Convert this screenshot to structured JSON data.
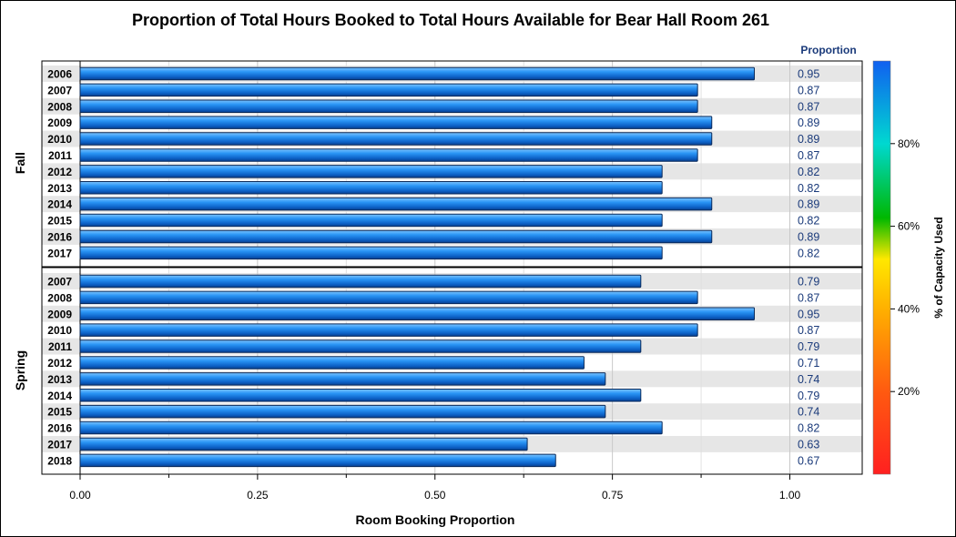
{
  "chart_data": {
    "type": "bar",
    "orientation": "horizontal",
    "title": "Proportion of Total Hours Booked to Total Hours Available for Bear Hall Room 261",
    "xlabel": "Room Booking Proportion",
    "value_column_header": "Proportion",
    "xlim": [
      0,
      1.1
    ],
    "x_ticks": [
      "0.00",
      "0.25",
      "0.50",
      "0.75",
      "1.00"
    ],
    "x_tick_values": [
      0,
      0.25,
      0.5,
      0.75,
      1.0
    ],
    "grid": true,
    "panels": [
      {
        "name": "Fall",
        "categories": [
          "2006",
          "2007",
          "2008",
          "2009",
          "2010",
          "2011",
          "2012",
          "2013",
          "2014",
          "2015",
          "2016",
          "2017"
        ],
        "values": [
          0.95,
          0.87,
          0.87,
          0.89,
          0.89,
          0.87,
          0.82,
          0.82,
          0.89,
          0.82,
          0.89,
          0.82
        ],
        "labels": [
          "0.95",
          "0.87",
          "0.87",
          "0.89",
          "0.89",
          "0.87",
          "0.82",
          "0.82",
          "0.89",
          "0.82",
          "0.89",
          "0.82"
        ]
      },
      {
        "name": "Spring",
        "categories": [
          "2007",
          "2008",
          "2009",
          "2010",
          "2011",
          "2012",
          "2013",
          "2014",
          "2015",
          "2016",
          "2017",
          "2018"
        ],
        "values": [
          0.79,
          0.87,
          0.95,
          0.87,
          0.79,
          0.71,
          0.74,
          0.79,
          0.74,
          0.82,
          0.63,
          0.67
        ],
        "labels": [
          "0.79",
          "0.87",
          "0.95",
          "0.87",
          "0.79",
          "0.71",
          "0.74",
          "0.79",
          "0.74",
          "0.82",
          "0.63",
          "0.67"
        ]
      }
    ],
    "colorbar": {
      "label": "% of Capacity Used",
      "ticks": [
        "20%",
        "40%",
        "60%",
        "80%"
      ],
      "tick_values": [
        20,
        40,
        60,
        80
      ],
      "range": [
        0,
        100
      ],
      "colors": [
        "#ff2020",
        "#ff8000",
        "#ffe000",
        "#00c000",
        "#00d8e0",
        "#1070f0"
      ]
    },
    "bar_color": "#1e88e8"
  }
}
